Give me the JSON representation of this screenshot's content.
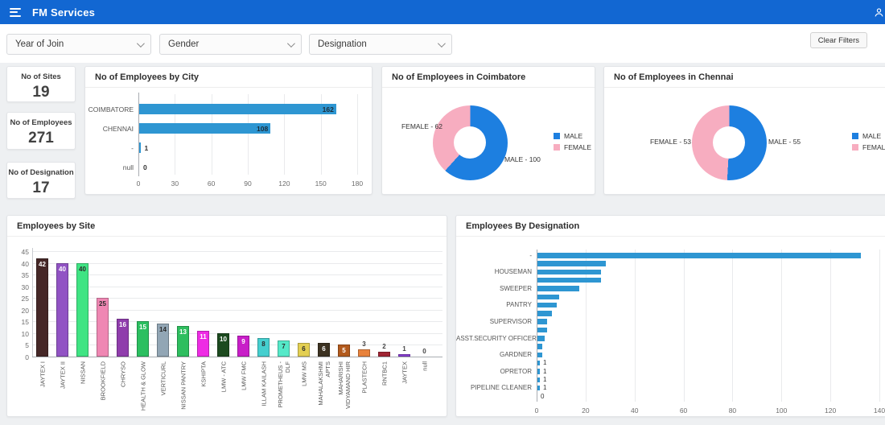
{
  "header": {
    "title": "FM Services",
    "user_label": "no"
  },
  "filters": [
    {
      "label": "Year of Join"
    },
    {
      "label": "Gender"
    },
    {
      "label": "Designation"
    }
  ],
  "clear_filters_label": "Clear Filters",
  "kpis": [
    {
      "label": "No of Sites",
      "value": "19"
    },
    {
      "label": "No of Employees",
      "value": "271"
    },
    {
      "label": "No of Designation",
      "value": "17"
    }
  ],
  "colors": {
    "topbar": "#1267d2",
    "bar_blue": "#2e96d2",
    "male_blue": "#1d7fe0",
    "female_pink": "#f7adc0"
  },
  "chart_data": [
    {
      "id": "city",
      "type": "bar",
      "orientation": "horizontal",
      "title": "No of Employees by City",
      "categories": [
        "COIMBATORE",
        "CHENNAI",
        "-",
        "null"
      ],
      "values": [
        162,
        108,
        1,
        0
      ],
      "xlim": [
        0,
        180
      ],
      "xticks": [
        0,
        30,
        60,
        90,
        120,
        150,
        180
      ],
      "bar_color": "#2e96d2",
      "grid": true
    },
    {
      "id": "coimbatore",
      "type": "pie",
      "title": "No of Employees in Coimbatore",
      "slices": [
        {
          "label": "MALE",
          "value": 100,
          "color": "#1d7fe0"
        },
        {
          "label": "FEMALE",
          "value": 62,
          "color": "#f7adc0"
        }
      ],
      "legend": [
        "MALE",
        "FEMALE"
      ],
      "legend_position": "right"
    },
    {
      "id": "chennai",
      "type": "pie",
      "title": "No of Employees in Chennai",
      "slices": [
        {
          "label": "MALE",
          "value": 55,
          "color": "#1d7fe0"
        },
        {
          "label": "FEMALE",
          "value": 53,
          "color": "#f7adc0"
        }
      ],
      "legend": [
        "MALE",
        "FEMALE"
      ],
      "legend_position": "right"
    },
    {
      "id": "site",
      "type": "bar",
      "orientation": "vertical",
      "title": "Employees by Site",
      "categories": [
        "JAYTEX I",
        "JAYTEX II",
        "NISSAN",
        "BROOKFIELD",
        "CHRYSO",
        "HEALTH & GLOW",
        "VERTICURL",
        "NISSAN PANTRY",
        "KSHIPTA",
        "LMW - ATC",
        "LMW FMC",
        "ILLAM KAILASH",
        "PROMETHEUS - DLF",
        "LMW MS",
        "MAHALAKSHMI APTS",
        "MAHARISHI VIDYAMAND HIR",
        "PLASTECH",
        "RNTBC1",
        "JAYTEX",
        "null"
      ],
      "values": [
        42,
        40,
        40,
        25,
        16,
        15,
        14,
        13,
        11,
        10,
        9,
        8,
        7,
        6,
        6,
        5,
        3,
        2,
        1,
        0
      ],
      "bar_colors": [
        "#452727",
        "#9153c4",
        "#3fe483",
        "#ef87b3",
        "#8f3dac",
        "#2bbf60",
        "#92a6b5",
        "#2ebe5f",
        "#ee2be4",
        "#1c4a1f",
        "#c81ec8",
        "#45cfcf",
        "#55e9c9",
        "#e3cf52",
        "#3c3222",
        "#b25a1d",
        "#e8823c",
        "#a12433",
        "#8b3fd6",
        "#cccccc"
      ],
      "ylim": [
        0,
        45
      ],
      "yticks": [
        0,
        5,
        10,
        15,
        20,
        25,
        30,
        35,
        40,
        45
      ],
      "grid": true
    },
    {
      "id": "designation",
      "type": "bar",
      "orientation": "horizontal",
      "title": "Employees By Designation",
      "categories": [
        "-",
        "",
        "HOUSEMAN",
        "",
        "SWEEPER",
        "",
        "PANTRY",
        "",
        "SUPERVISOR",
        "",
        "ASST.SECURITY OFFICER",
        "",
        "GARDNER",
        "",
        "OPRETOR",
        "",
        "PIPELINE CLEANER",
        ""
      ],
      "values": [
        132,
        28,
        26,
        26,
        17,
        9,
        8,
        6,
        4,
        4,
        3,
        2,
        2,
        1,
        1,
        1,
        1,
        0
      ],
      "xlim": [
        0,
        140
      ],
      "xticks": [
        0,
        20,
        40,
        60,
        80,
        100,
        120,
        140
      ],
      "bar_color": "#2e96d2",
      "grid": true
    }
  ]
}
